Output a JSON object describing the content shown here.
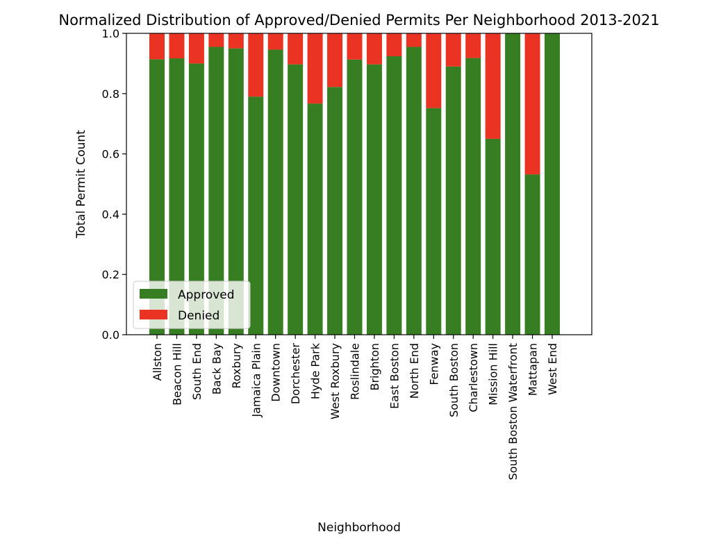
{
  "chart_data": {
    "type": "bar",
    "stacked": true,
    "title": "Normalized Distribution of Approved/Denied Permits Per Neighborhood 2013-2021",
    "xlabel": "Neighborhood",
    "ylabel": "Total Permit Count",
    "ylim": [
      0,
      1.0
    ],
    "yticks": [
      "0.0",
      "0.2",
      "0.4",
      "0.6",
      "0.8",
      "1.0"
    ],
    "grid": false,
    "legend_position": "lower-left",
    "categories": [
      "Allston",
      "Beacon Hill",
      "South End",
      "Back Bay",
      "Roxbury",
      "Jamaica Plain",
      "Downtown",
      "Dorchester",
      "Hyde Park",
      "West Roxbury",
      "Roslindale",
      "Brighton",
      "East Boston",
      "North End",
      "Fenway",
      "South Boston",
      "Charlestown",
      "Mission Hill",
      "South Boston Waterfront",
      "Mattapan",
      "West End"
    ],
    "series": [
      {
        "name": "Approved",
        "color": "#377d22",
        "values": [
          0.914,
          0.917,
          0.9,
          0.955,
          0.95,
          0.79,
          0.946,
          0.897,
          0.767,
          0.822,
          0.913,
          0.897,
          0.924,
          0.955,
          0.752,
          0.89,
          0.918,
          0.65,
          1.0,
          0.532,
          1.0
        ]
      },
      {
        "name": "Denied",
        "color": "#ea3323",
        "values": [
          0.086,
          0.083,
          0.1,
          0.045,
          0.05,
          0.21,
          0.054,
          0.103,
          0.233,
          0.178,
          0.087,
          0.103,
          0.076,
          0.045,
          0.248,
          0.11,
          0.082,
          0.35,
          0.0,
          0.468,
          0.0
        ]
      }
    ]
  }
}
